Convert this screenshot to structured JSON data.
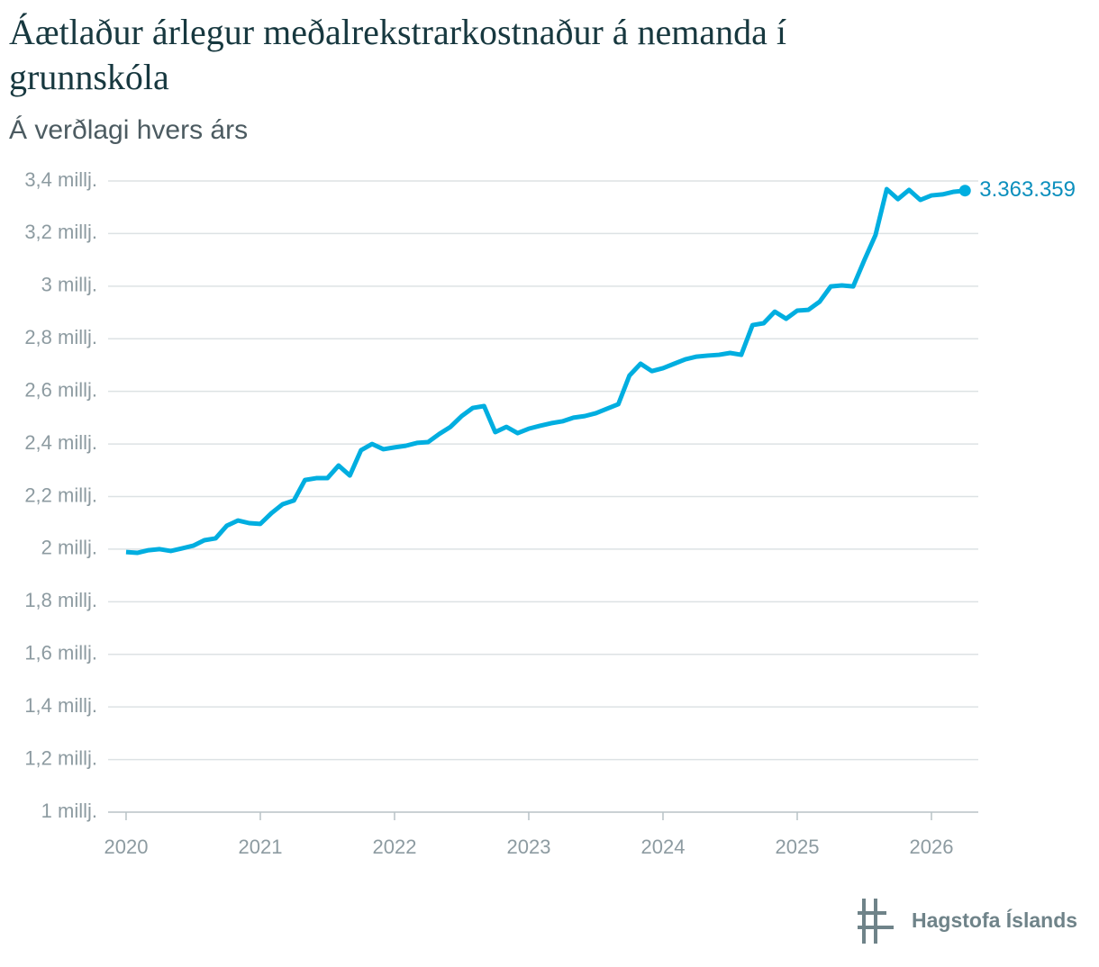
{
  "chart_data": {
    "type": "line",
    "title": "Áætlaður árlegur meðalrekstrarkostnaður á nemanda í grunnskóla",
    "subtitle": "Á verðlagi hvers árs",
    "source": "Hagstofa Íslands",
    "color": "#00aee0",
    "x": [
      2020,
      2020.083,
      2020.167,
      2020.25,
      2020.333,
      2020.417,
      2020.5,
      2020.583,
      2020.667,
      2020.75,
      2020.833,
      2020.917,
      2021,
      2021.083,
      2021.167,
      2021.25,
      2021.333,
      2021.417,
      2021.5,
      2021.583,
      2021.667,
      2021.75,
      2021.833,
      2021.917,
      2022,
      2022.083,
      2022.167,
      2022.25,
      2022.333,
      2022.417,
      2022.5,
      2022.583,
      2022.667,
      2022.75,
      2022.833,
      2022.917,
      2023,
      2023.083,
      2023.167,
      2023.25,
      2023.333,
      2023.417,
      2023.5,
      2023.583,
      2023.667,
      2023.75,
      2023.833,
      2023.917,
      2024,
      2024.083,
      2024.167,
      2024.25,
      2024.333,
      2024.417,
      2024.5,
      2024.583,
      2024.667,
      2024.75,
      2024.833,
      2024.917,
      2025,
      2025.083,
      2025.167,
      2025.25,
      2025.333,
      2025.417,
      2025.5,
      2025.583,
      2025.667,
      2025.75,
      2025.833,
      2025.917,
      2026,
      2026.083,
      2026.167,
      2026.25
    ],
    "values": [
      1989000,
      1986000,
      1996000,
      2000000,
      1993000,
      2003000,
      2013000,
      2034000,
      2041000,
      2089000,
      2109000,
      2099000,
      2096000,
      2137000,
      2171000,
      2185000,
      2263000,
      2270000,
      2270000,
      2318000,
      2280000,
      2376000,
      2400000,
      2380000,
      2387000,
      2393000,
      2404000,
      2407000,
      2438000,
      2465000,
      2506000,
      2537000,
      2544000,
      2445000,
      2465000,
      2441000,
      2458000,
      2469000,
      2479000,
      2486000,
      2500000,
      2506000,
      2517000,
      2534000,
      2551000,
      2660000,
      2705000,
      2677000,
      2688000,
      2705000,
      2722000,
      2732000,
      2736000,
      2739000,
      2746000,
      2739000,
      2852000,
      2859000,
      2903000,
      2876000,
      2907000,
      2910000,
      2941000,
      2999000,
      3003000,
      2999000,
      3099000,
      3194000,
      3369000,
      3331000,
      3366000,
      3328000,
      3345000,
      3349000,
      3359000,
      3363359
    ],
    "value_labels": [
      null,
      null,
      null,
      null,
      null,
      null,
      null,
      null,
      null,
      null,
      null,
      null,
      null,
      null,
      null,
      null,
      null,
      null,
      null,
      null,
      null,
      null,
      null,
      null,
      null,
      null,
      null,
      null,
      null,
      null,
      null,
      null,
      null,
      null,
      null,
      null,
      null,
      null,
      null,
      null,
      null,
      null,
      null,
      null,
      null,
      null,
      null,
      null,
      null,
      null,
      null,
      null,
      null,
      null,
      null,
      null,
      null,
      null,
      null,
      null,
      null,
      null,
      null,
      null,
      null,
      null,
      null,
      null,
      null,
      null,
      null,
      null,
      null,
      null,
      null,
      "3.363.359"
    ],
    "xlim": [
      2019.866,
      2026.349
    ],
    "xticks": [
      2020,
      2021,
      2022,
      2023,
      2024,
      2025,
      2026
    ],
    "ylim": [
      1000000,
      3400000
    ],
    "yticks": [
      {
        "value": 1000000,
        "label": "1 millj."
      },
      {
        "value": 1200000,
        "label": "1,2 millj."
      },
      {
        "value": 1400000,
        "label": "1,4 millj."
      },
      {
        "value": 1600000,
        "label": "1,6 millj."
      },
      {
        "value": 1800000,
        "label": "1,8 millj."
      },
      {
        "value": 2000000,
        "label": "2 millj."
      },
      {
        "value": 2200000,
        "label": "2,2 millj."
      },
      {
        "value": 2400000,
        "label": "2,4 millj."
      },
      {
        "value": 2600000,
        "label": "2,6 millj."
      },
      {
        "value": 2800000,
        "label": "2,8 millj."
      },
      {
        "value": 3000000,
        "label": "3 millj."
      },
      {
        "value": 3200000,
        "label": "3,2 millj."
      },
      {
        "value": 3400000,
        "label": "3,4 millj."
      }
    ],
    "grid": true
  }
}
